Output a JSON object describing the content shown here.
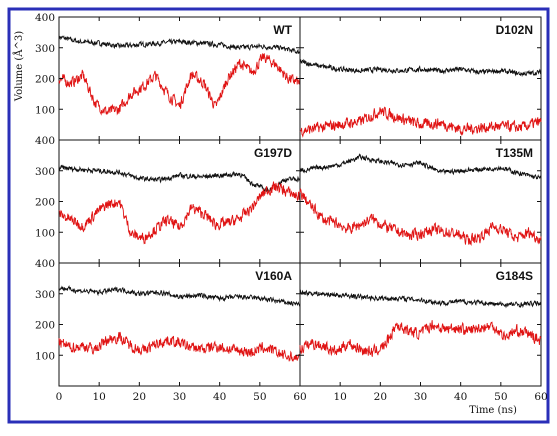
{
  "chart_data": {
    "type": "line",
    "layout": "3x2 grid of panels",
    "ylabel": "Volume (Å^3)",
    "xlabel": "Time (ns)",
    "xlim": [
      0,
      60
    ],
    "ylim": [
      0,
      400
    ],
    "x_ticks": [
      0,
      10,
      20,
      30,
      40,
      50,
      60
    ],
    "y_ticks": [
      100,
      200,
      300,
      400
    ],
    "colors": {
      "series_1": "#111111",
      "series_2": "#e01414",
      "frame": "#2a2fb8"
    },
    "panels": [
      {
        "label": "WT",
        "series": [
          {
            "color": "#111111",
            "points": [
              [
                0,
                335
              ],
              [
                5,
                320
              ],
              [
                10,
                315
              ],
              [
                15,
                305
              ],
              [
                20,
                310
              ],
              [
                25,
                315
              ],
              [
                30,
                320
              ],
              [
                35,
                315
              ],
              [
                40,
                310
              ],
              [
                45,
                300
              ],
              [
                50,
                305
              ],
              [
                55,
                300
              ],
              [
                60,
                285
              ]
            ]
          },
          {
            "color": "#e01414",
            "points": [
              [
                0,
                200
              ],
              [
                3,
                185
              ],
              [
                6,
                210
              ],
              [
                9,
                120
              ],
              [
                12,
                90
              ],
              [
                15,
                100
              ],
              [
                18,
                150
              ],
              [
                21,
                175
              ],
              [
                24,
                210
              ],
              [
                27,
                150
              ],
              [
                30,
                110
              ],
              [
                33,
                215
              ],
              [
                36,
                185
              ],
              [
                39,
                105
              ],
              [
                42,
                200
              ],
              [
                45,
                250
              ],
              [
                48,
                220
              ],
              [
                51,
                270
              ],
              [
                54,
                245
              ],
              [
                57,
                200
              ],
              [
                60,
                185
              ]
            ]
          }
        ]
      },
      {
        "label": "D102N",
        "series": [
          {
            "color": "#111111",
            "points": [
              [
                0,
                255
              ],
              [
                5,
                240
              ],
              [
                10,
                230
              ],
              [
                15,
                225
              ],
              [
                20,
                230
              ],
              [
                25,
                225
              ],
              [
                30,
                230
              ],
              [
                35,
                225
              ],
              [
                40,
                230
              ],
              [
                45,
                220
              ],
              [
                50,
                225
              ],
              [
                55,
                215
              ],
              [
                60,
                220
              ]
            ]
          },
          {
            "color": "#e01414",
            "points": [
              [
                0,
                30
              ],
              [
                5,
                40
              ],
              [
                10,
                50
              ],
              [
                15,
                60
              ],
              [
                20,
                95
              ],
              [
                25,
                70
              ],
              [
                30,
                50
              ],
              [
                35,
                55
              ],
              [
                40,
                35
              ],
              [
                45,
                40
              ],
              [
                50,
                45
              ],
              [
                55,
                40
              ],
              [
                60,
                60
              ]
            ]
          }
        ]
      },
      {
        "label": "G197D",
        "series": [
          {
            "color": "#111111",
            "points": [
              [
                0,
                310
              ],
              [
                5,
                305
              ],
              [
                10,
                300
              ],
              [
                15,
                295
              ],
              [
                20,
                275
              ],
              [
                25,
                270
              ],
              [
                30,
                285
              ],
              [
                35,
                280
              ],
              [
                40,
                285
              ],
              [
                45,
                290
              ],
              [
                48,
                260
              ],
              [
                52,
                235
              ],
              [
                56,
                270
              ],
              [
                60,
                275
              ]
            ]
          },
          {
            "color": "#e01414",
            "points": [
              [
                0,
                160
              ],
              [
                3,
                140
              ],
              [
                6,
                120
              ],
              [
                9,
                160
              ],
              [
                12,
                190
              ],
              [
                15,
                200
              ],
              [
                18,
                95
              ],
              [
                21,
                80
              ],
              [
                24,
                110
              ],
              [
                27,
                140
              ],
              [
                30,
                115
              ],
              [
                33,
                180
              ],
              [
                36,
                160
              ],
              [
                39,
                125
              ],
              [
                42,
                130
              ],
              [
                45,
                145
              ],
              [
                48,
                180
              ],
              [
                51,
                230
              ],
              [
                54,
                250
              ],
              [
                57,
                230
              ],
              [
                60,
                215
              ]
            ]
          }
        ]
      },
      {
        "label": "T135M",
        "series": [
          {
            "color": "#111111",
            "points": [
              [
                0,
                300
              ],
              [
                5,
                310
              ],
              [
                10,
                320
              ],
              [
                15,
                345
              ],
              [
                20,
                330
              ],
              [
                25,
                320
              ],
              [
                30,
                325
              ],
              [
                35,
                295
              ],
              [
                40,
                300
              ],
              [
                45,
                305
              ],
              [
                50,
                310
              ],
              [
                55,
                290
              ],
              [
                60,
                275
              ]
            ]
          },
          {
            "color": "#e01414",
            "points": [
              [
                0,
                230
              ],
              [
                3,
                180
              ],
              [
                6,
                140
              ],
              [
                9,
                130
              ],
              [
                12,
                110
              ],
              [
                15,
                125
              ],
              [
                18,
                145
              ],
              [
                21,
                120
              ],
              [
                24,
                105
              ],
              [
                27,
                90
              ],
              [
                30,
                95
              ],
              [
                33,
                110
              ],
              [
                36,
                100
              ],
              [
                39,
                95
              ],
              [
                42,
                75
              ],
              [
                45,
                85
              ],
              [
                48,
                120
              ],
              [
                51,
                105
              ],
              [
                54,
                80
              ],
              [
                57,
                100
              ],
              [
                60,
                75
              ]
            ]
          }
        ]
      },
      {
        "label": "V160A",
        "series": [
          {
            "color": "#111111",
            "points": [
              [
                0,
                320
              ],
              [
                5,
                310
              ],
              [
                10,
                305
              ],
              [
                15,
                315
              ],
              [
                20,
                300
              ],
              [
                25,
                305
              ],
              [
                30,
                290
              ],
              [
                35,
                295
              ],
              [
                40,
                285
              ],
              [
                45,
                290
              ],
              [
                50,
                285
              ],
              [
                55,
                275
              ],
              [
                60,
                265
              ]
            ]
          },
          {
            "color": "#e01414",
            "points": [
              [
                0,
                140
              ],
              [
                3,
                125
              ],
              [
                6,
                130
              ],
              [
                9,
                120
              ],
              [
                12,
                150
              ],
              [
                15,
                160
              ],
              [
                18,
                130
              ],
              [
                21,
                115
              ],
              [
                24,
                135
              ],
              [
                27,
                150
              ],
              [
                30,
                140
              ],
              [
                33,
                125
              ],
              [
                36,
                120
              ],
              [
                39,
                130
              ],
              [
                42,
                120
              ],
              [
                45,
                115
              ],
              [
                48,
                110
              ],
              [
                51,
                125
              ],
              [
                54,
                110
              ],
              [
                57,
                95
              ],
              [
                60,
                90
              ]
            ]
          }
        ]
      },
      {
        "label": "G184S",
        "series": [
          {
            "color": "#111111",
            "points": [
              [
                0,
                305
              ],
              [
                5,
                300
              ],
              [
                10,
                295
              ],
              [
                15,
                290
              ],
              [
                20,
                285
              ],
              [
                25,
                285
              ],
              [
                30,
                280
              ],
              [
                35,
                270
              ],
              [
                40,
                275
              ],
              [
                45,
                270
              ],
              [
                50,
                265
              ],
              [
                55,
                265
              ],
              [
                60,
                270
              ]
            ]
          },
          {
            "color": "#e01414",
            "points": [
              [
                0,
                120
              ],
              [
                3,
                140
              ],
              [
                6,
                130
              ],
              [
                9,
                110
              ],
              [
                12,
                140
              ],
              [
                15,
                120
              ],
              [
                18,
                110
              ],
              [
                21,
                130
              ],
              [
                24,
                200
              ],
              [
                27,
                180
              ],
              [
                30,
                170
              ],
              [
                33,
                200
              ],
              [
                36,
                185
              ],
              [
                39,
                190
              ],
              [
                42,
                180
              ],
              [
                45,
                190
              ],
              [
                48,
                195
              ],
              [
                51,
                160
              ],
              [
                54,
                180
              ],
              [
                57,
                170
              ],
              [
                60,
                145
              ]
            ]
          }
        ]
      }
    ]
  }
}
